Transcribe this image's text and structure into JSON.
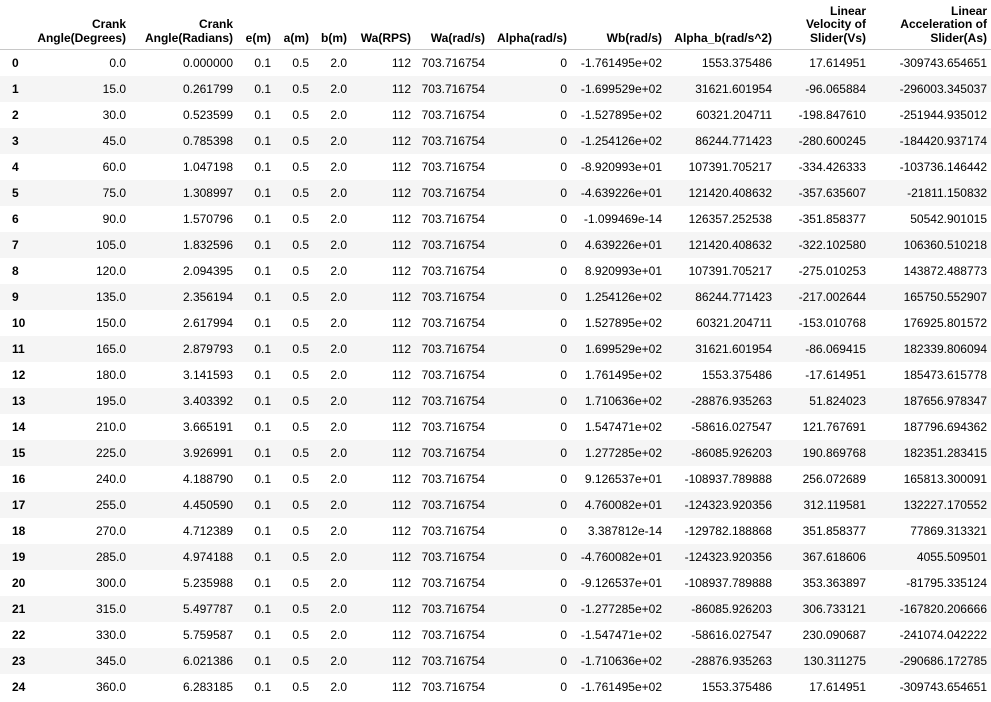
{
  "table": {
    "columns": [
      [
        "Crank",
        "Angle(Degrees)"
      ],
      [
        "Crank",
        "Angle(Radians)"
      ],
      [
        "e(m)"
      ],
      [
        "a(m)"
      ],
      [
        "b(m)"
      ],
      [
        "Wa(RPS)"
      ],
      [
        "Wa(rad/s)"
      ],
      [
        "Alpha(rad/s)"
      ],
      [
        "Wb(rad/s)"
      ],
      [
        "Alpha_b(rad/s^2)"
      ],
      [
        "Linear",
        "Velocity of",
        "Slider(Vs)"
      ],
      [
        "Linear",
        "Acceleration of",
        "Slider(As)"
      ]
    ],
    "rows": [
      {
        "index": "0",
        "cells": [
          "0.0",
          "0.000000",
          "0.1",
          "0.5",
          "2.0",
          "112",
          "703.716754",
          "0",
          "-1.761495e+02",
          "1553.375486",
          "17.614951",
          "-309743.654651"
        ]
      },
      {
        "index": "1",
        "cells": [
          "15.0",
          "0.261799",
          "0.1",
          "0.5",
          "2.0",
          "112",
          "703.716754",
          "0",
          "-1.699529e+02",
          "31621.601954",
          "-96.065884",
          "-296003.345037"
        ]
      },
      {
        "index": "2",
        "cells": [
          "30.0",
          "0.523599",
          "0.1",
          "0.5",
          "2.0",
          "112",
          "703.716754",
          "0",
          "-1.527895e+02",
          "60321.204711",
          "-198.847610",
          "-251944.935012"
        ]
      },
      {
        "index": "3",
        "cells": [
          "45.0",
          "0.785398",
          "0.1",
          "0.5",
          "2.0",
          "112",
          "703.716754",
          "0",
          "-1.254126e+02",
          "86244.771423",
          "-280.600245",
          "-184420.937174"
        ]
      },
      {
        "index": "4",
        "cells": [
          "60.0",
          "1.047198",
          "0.1",
          "0.5",
          "2.0",
          "112",
          "703.716754",
          "0",
          "-8.920993e+01",
          "107391.705217",
          "-334.426333",
          "-103736.146442"
        ]
      },
      {
        "index": "5",
        "cells": [
          "75.0",
          "1.308997",
          "0.1",
          "0.5",
          "2.0",
          "112",
          "703.716754",
          "0",
          "-4.639226e+01",
          "121420.408632",
          "-357.635607",
          "-21811.150832"
        ]
      },
      {
        "index": "6",
        "cells": [
          "90.0",
          "1.570796",
          "0.1",
          "0.5",
          "2.0",
          "112",
          "703.716754",
          "0",
          "-1.099469e-14",
          "126357.252538",
          "-351.858377",
          "50542.901015"
        ]
      },
      {
        "index": "7",
        "cells": [
          "105.0",
          "1.832596",
          "0.1",
          "0.5",
          "2.0",
          "112",
          "703.716754",
          "0",
          "4.639226e+01",
          "121420.408632",
          "-322.102580",
          "106360.510218"
        ]
      },
      {
        "index": "8",
        "cells": [
          "120.0",
          "2.094395",
          "0.1",
          "0.5",
          "2.0",
          "112",
          "703.716754",
          "0",
          "8.920993e+01",
          "107391.705217",
          "-275.010253",
          "143872.488773"
        ]
      },
      {
        "index": "9",
        "cells": [
          "135.0",
          "2.356194",
          "0.1",
          "0.5",
          "2.0",
          "112",
          "703.716754",
          "0",
          "1.254126e+02",
          "86244.771423",
          "-217.002644",
          "165750.552907"
        ]
      },
      {
        "index": "10",
        "cells": [
          "150.0",
          "2.617994",
          "0.1",
          "0.5",
          "2.0",
          "112",
          "703.716754",
          "0",
          "1.527895e+02",
          "60321.204711",
          "-153.010768",
          "176925.801572"
        ]
      },
      {
        "index": "11",
        "cells": [
          "165.0",
          "2.879793",
          "0.1",
          "0.5",
          "2.0",
          "112",
          "703.716754",
          "0",
          "1.699529e+02",
          "31621.601954",
          "-86.069415",
          "182339.806094"
        ]
      },
      {
        "index": "12",
        "cells": [
          "180.0",
          "3.141593",
          "0.1",
          "0.5",
          "2.0",
          "112",
          "703.716754",
          "0",
          "1.761495e+02",
          "1553.375486",
          "-17.614951",
          "185473.615778"
        ]
      },
      {
        "index": "13",
        "cells": [
          "195.0",
          "3.403392",
          "0.1",
          "0.5",
          "2.0",
          "112",
          "703.716754",
          "0",
          "1.710636e+02",
          "-28876.935263",
          "51.824023",
          "187656.978347"
        ]
      },
      {
        "index": "14",
        "cells": [
          "210.0",
          "3.665191",
          "0.1",
          "0.5",
          "2.0",
          "112",
          "703.716754",
          "0",
          "1.547471e+02",
          "-58616.027547",
          "121.767691",
          "187796.694362"
        ]
      },
      {
        "index": "15",
        "cells": [
          "225.0",
          "3.926991",
          "0.1",
          "0.5",
          "2.0",
          "112",
          "703.716754",
          "0",
          "1.277285e+02",
          "-86085.926203",
          "190.869768",
          "182351.283415"
        ]
      },
      {
        "index": "16",
        "cells": [
          "240.0",
          "4.188790",
          "0.1",
          "0.5",
          "2.0",
          "112",
          "703.716754",
          "0",
          "9.126537e+01",
          "-108937.789888",
          "256.072689",
          "165813.300091"
        ]
      },
      {
        "index": "17",
        "cells": [
          "255.0",
          "4.450590",
          "0.1",
          "0.5",
          "2.0",
          "112",
          "703.716754",
          "0",
          "4.760082e+01",
          "-124323.920356",
          "312.119581",
          "132227.170552"
        ]
      },
      {
        "index": "18",
        "cells": [
          "270.0",
          "4.712389",
          "0.1",
          "0.5",
          "2.0",
          "112",
          "703.716754",
          "0",
          "3.387812e-14",
          "-129782.188868",
          "351.858377",
          "77869.313321"
        ]
      },
      {
        "index": "19",
        "cells": [
          "285.0",
          "4.974188",
          "0.1",
          "0.5",
          "2.0",
          "112",
          "703.716754",
          "0",
          "-4.760082e+01",
          "-124323.920356",
          "367.618606",
          "4055.509501"
        ]
      },
      {
        "index": "20",
        "cells": [
          "300.0",
          "5.235988",
          "0.1",
          "0.5",
          "2.0",
          "112",
          "703.716754",
          "0",
          "-9.126537e+01",
          "-108937.789888",
          "353.363897",
          "-81795.335124"
        ]
      },
      {
        "index": "21",
        "cells": [
          "315.0",
          "5.497787",
          "0.1",
          "0.5",
          "2.0",
          "112",
          "703.716754",
          "0",
          "-1.277285e+02",
          "-86085.926203",
          "306.733121",
          "-167820.206666"
        ]
      },
      {
        "index": "22",
        "cells": [
          "330.0",
          "5.759587",
          "0.1",
          "0.5",
          "2.0",
          "112",
          "703.716754",
          "0",
          "-1.547471e+02",
          "-58616.027547",
          "230.090687",
          "-241074.042222"
        ]
      },
      {
        "index": "23",
        "cells": [
          "345.0",
          "6.021386",
          "0.1",
          "0.5",
          "2.0",
          "112",
          "703.716754",
          "0",
          "-1.710636e+02",
          "-28876.935263",
          "130.311275",
          "-290686.172785"
        ]
      },
      {
        "index": "24",
        "cells": [
          "360.0",
          "6.283185",
          "0.1",
          "0.5",
          "2.0",
          "112",
          "703.716754",
          "0",
          "-1.761495e+02",
          "1553.375486",
          "17.614951",
          "-309743.654651"
        ]
      }
    ]
  },
  "colors": {
    "header_rule": "#c8c8c8",
    "stripe": "#f5f5f5",
    "background": "#ffffff"
  }
}
